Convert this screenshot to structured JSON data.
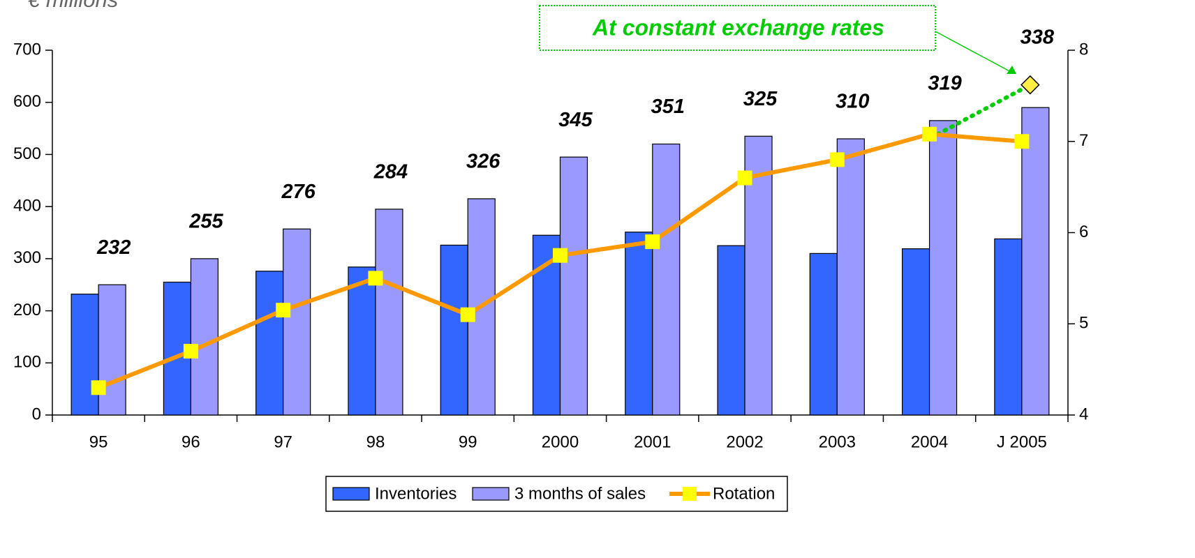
{
  "chart_data": {
    "type": "bar",
    "title": "€ millions",
    "categories": [
      "95",
      "96",
      "97",
      "98",
      "99",
      "2000",
      "2001",
      "2002",
      "2003",
      "2004",
      "J 2005"
    ],
    "series": [
      {
        "name": "Inventories",
        "color": "#3366ff",
        "values": [
          232,
          255,
          276,
          284,
          326,
          345,
          351,
          325,
          310,
          319,
          338
        ],
        "show_labels": true
      },
      {
        "name": "3 months of sales",
        "color": "#9999ff",
        "values": [
          250,
          300,
          357,
          395,
          415,
          495,
          520,
          535,
          530,
          565,
          590
        ]
      },
      {
        "name": "Rotation",
        "type": "line",
        "axis": "y2",
        "color": "#ff9900",
        "marker_color": "#ffff00",
        "values": [
          4.3,
          4.7,
          5.15,
          5.5,
          5.1,
          5.75,
          5.9,
          6.6,
          6.8,
          7.08,
          7.0
        ]
      }
    ],
    "constant_rates": {
      "text": "At constant exchange rates",
      "color": "#00cc00",
      "values": [
        null,
        null,
        null,
        null,
        null,
        null,
        null,
        null,
        null,
        7.08,
        7.62
      ]
    },
    "ylim": [
      0,
      700
    ],
    "yticks": [
      0,
      100,
      200,
      300,
      400,
      500,
      600,
      700
    ],
    "y2lim": [
      4,
      8
    ],
    "y2ticks": [
      4,
      5,
      6,
      7,
      8
    ],
    "grid": false,
    "legend": "bottom"
  }
}
